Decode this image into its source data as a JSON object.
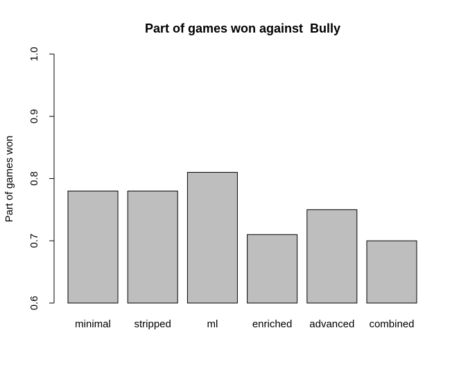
{
  "chart_data": {
    "type": "bar",
    "title": "Part of games won against  Bully",
    "xlabel": "",
    "ylabel": "Part of games won",
    "categories": [
      "minimal",
      "stripped",
      "ml",
      "enriched",
      "advanced",
      "combined"
    ],
    "values": [
      0.78,
      0.78,
      0.81,
      0.71,
      0.75,
      0.7
    ],
    "ylim": [
      0.6,
      1.0
    ],
    "yticks": [
      "0.6",
      "0.7",
      "0.8",
      "0.9",
      "1.0"
    ],
    "grid": false,
    "colors": {
      "bar_fill": "#bebebe",
      "bar_stroke": "#000000",
      "axis": "#000000",
      "background": "#ffffff"
    }
  }
}
